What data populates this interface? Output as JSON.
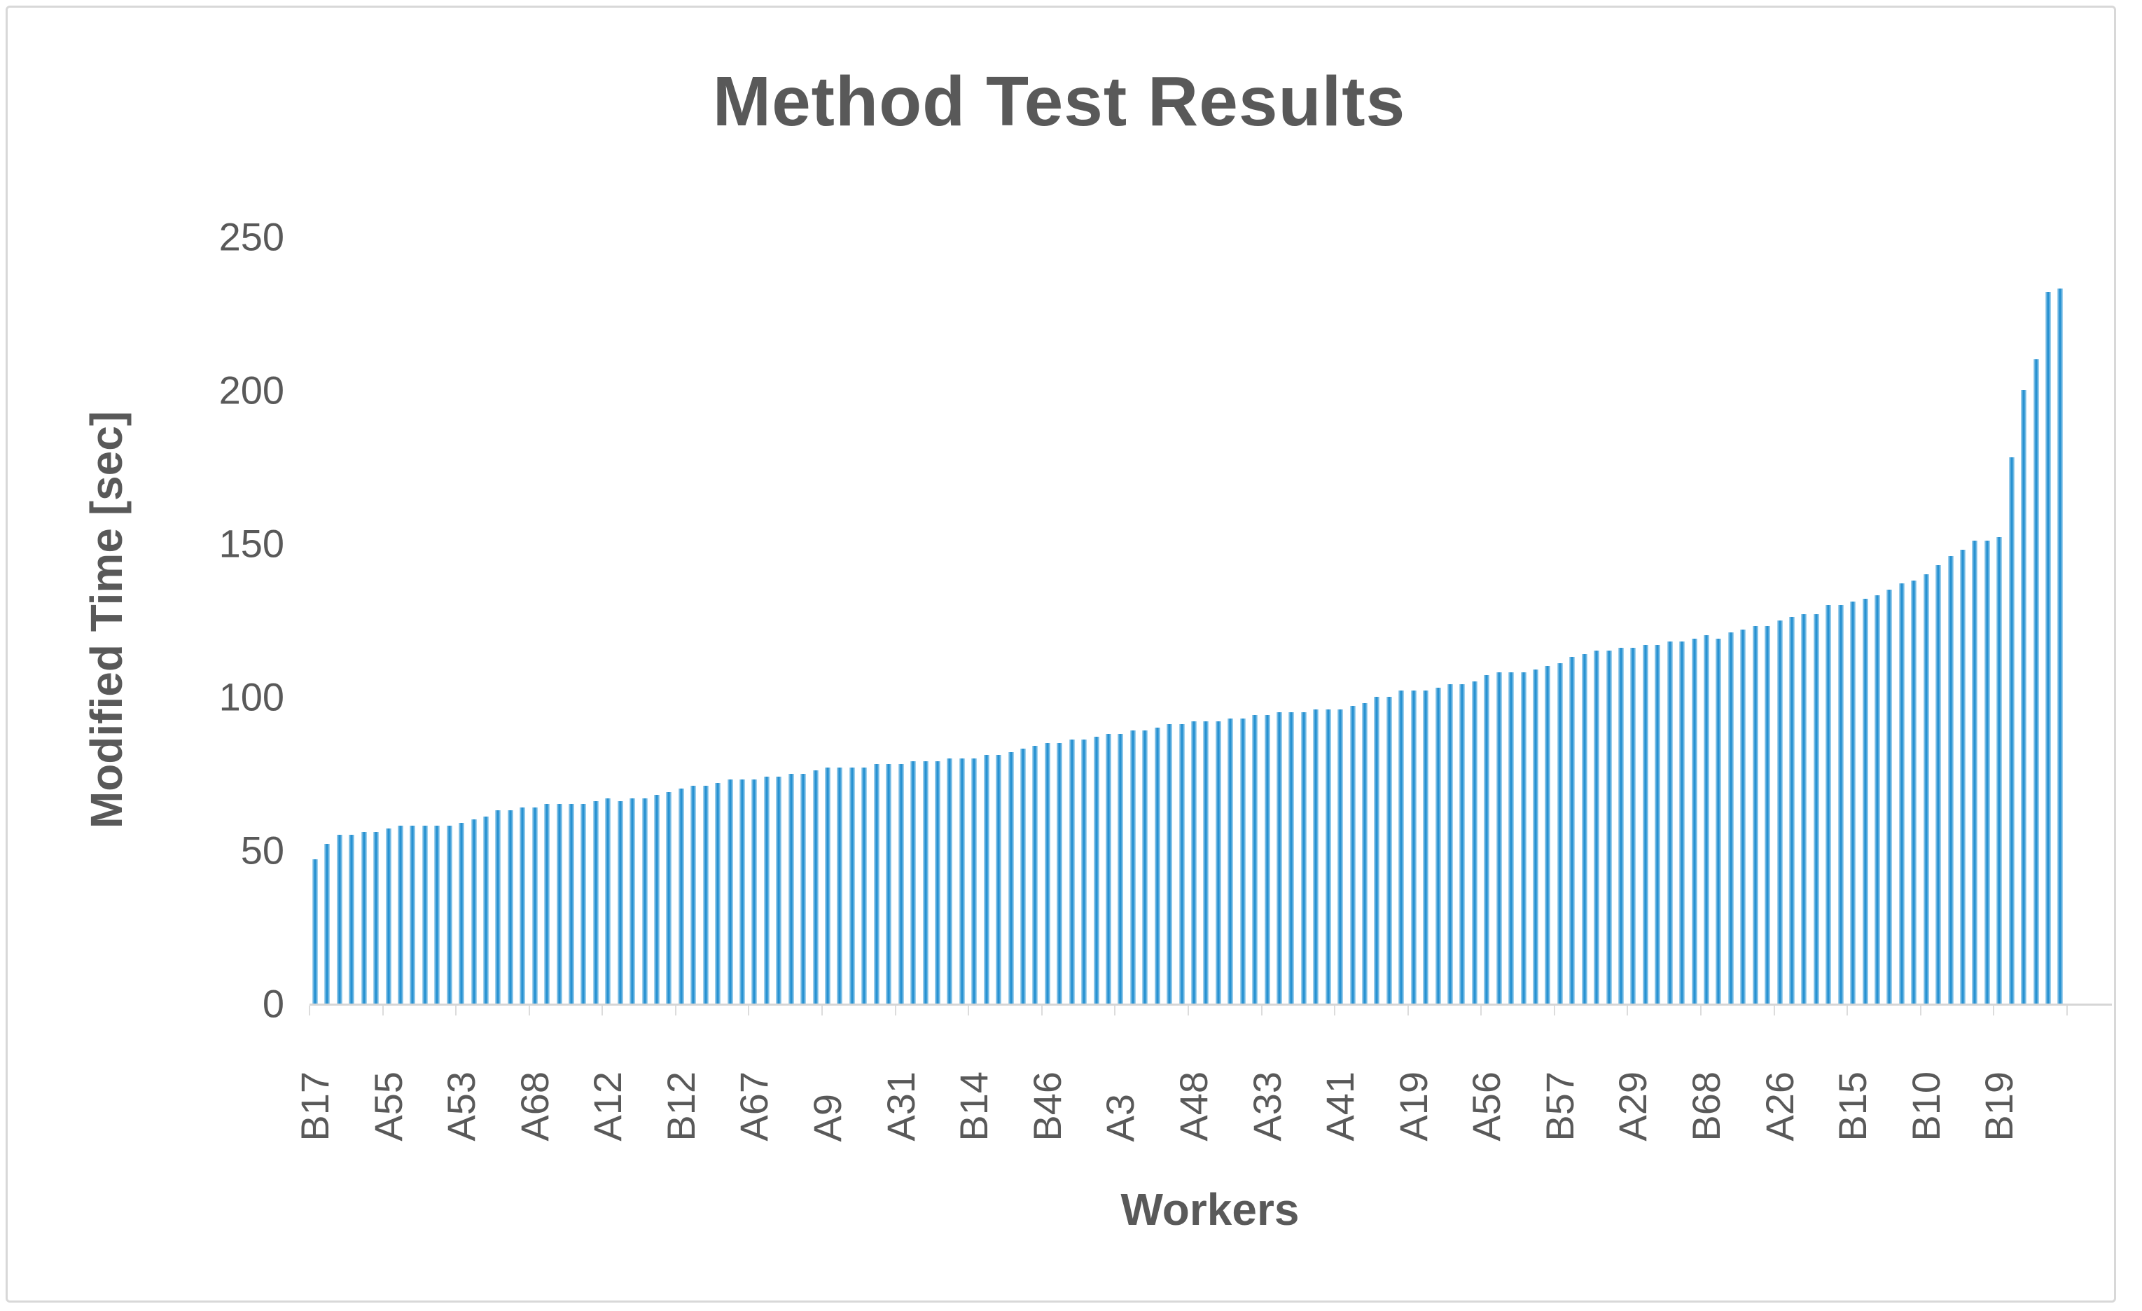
{
  "title": "Method Test Results",
  "colors": {
    "bar": "#2E96D5",
    "bar_edge": "#B5DBF1",
    "text": "#595959",
    "axis_line": "#D6D6D6",
    "frame_border": "#D8D8D8",
    "background": "#FFFFFF"
  },
  "chart_data": {
    "type": "bar",
    "title": "Method Test Results",
    "xlabel": "Workers",
    "ylabel": "Modified Time [sec]",
    "ylim": [
      0,
      250
    ],
    "y_ticks": [
      0,
      50,
      100,
      150,
      200,
      250
    ],
    "grid": false,
    "legend": "none",
    "bar_count": 144,
    "label_interval": 6,
    "x_labels": [
      "B17",
      "A55",
      "A53",
      "A68",
      "A12",
      "B12",
      "A67",
      "A9",
      "A31",
      "B14",
      "B46",
      "A3",
      "A48",
      "A33",
      "A41",
      "A19",
      "A56",
      "B57",
      "A29",
      "B68",
      "A26",
      "B15",
      "B10",
      "B19"
    ],
    "values": [
      47,
      52,
      55,
      55,
      56,
      56,
      57,
      58,
      58,
      58,
      58,
      58,
      59,
      60,
      61,
      63,
      63,
      64,
      64,
      65,
      65,
      65,
      65,
      66,
      67,
      66,
      67,
      67,
      68,
      69,
      70,
      71,
      71,
      72,
      73,
      73,
      73,
      74,
      74,
      75,
      75,
      76,
      77,
      77,
      77,
      77,
      78,
      78,
      78,
      79,
      79,
      79,
      80,
      80,
      80,
      81,
      81,
      82,
      83,
      84,
      85,
      85,
      86,
      86,
      87,
      88,
      88,
      89,
      89,
      90,
      91,
      91,
      92,
      92,
      92,
      93,
      93,
      94,
      94,
      95,
      95,
      95,
      96,
      96,
      96,
      97,
      98,
      100,
      100,
      102,
      102,
      102,
      103,
      104,
      104,
      105,
      107,
      108,
      108,
      108,
      109,
      110,
      111,
      113,
      114,
      115,
      115,
      116,
      116,
      117,
      117,
      118,
      118,
      119,
      120,
      119,
      121,
      122,
      123,
      123,
      125,
      126,
      127,
      127,
      130,
      130,
      131,
      132,
      133,
      135,
      137,
      138,
      140,
      143,
      146,
      148,
      151,
      151,
      152,
      178,
      200,
      210,
      232,
      233
    ]
  },
  "geometry_note": "values in seconds; labels shown under every 6th bar"
}
